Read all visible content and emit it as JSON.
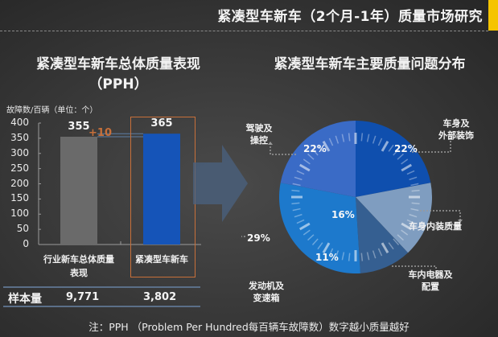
{
  "header": {
    "title": "紧凑型车新车（2个月-1年）质量市场研究",
    "accent_color": "#f5c400"
  },
  "left_panel": {
    "title_line1": "紧凑型车新车总体质量表现",
    "title_line2": "（PPH）",
    "unit_label": "故障数/百辆（单位：个）",
    "diff_label": "+10",
    "highlight_color": "#c8703a",
    "sample_table": {
      "row_label": "样本量",
      "values": [
        "9,771",
        "3,802"
      ]
    }
  },
  "right_panel": {
    "title": "紧凑型车新车主要质量问题分布"
  },
  "chart_data": [
    {
      "type": "bar",
      "title": "紧凑型车新车总体质量表现（PPH）",
      "ylabel": "故障数/百辆（单位：个）",
      "xlabel": "",
      "categories": [
        "行业新车总体质量表现",
        "紧凑型车新车"
      ],
      "category_lines": [
        [
          "行业新车总体质量",
          "表现"
        ],
        [
          "紧凑型车新车"
        ]
      ],
      "values": [
        355,
        365
      ],
      "value_labels": [
        "355",
        "365"
      ],
      "colors": [
        "#6a6a6a",
        "#1554b8"
      ],
      "ylim": [
        0,
        400
      ],
      "yticks": [
        0,
        50,
        100,
        150,
        200,
        250,
        300,
        350,
        400
      ],
      "annotation": "+10",
      "grid": false,
      "legend": null
    },
    {
      "type": "pie",
      "title": "紧凑型车新车主要质量问题分布",
      "slices": [
        {
          "label": "车身及外部装饰",
          "label_lines": [
            "车身及",
            "外部装饰"
          ],
          "value": 22,
          "value_label": "22%",
          "color": "#0f4fae"
        },
        {
          "label": "车身内装质量",
          "label_lines": [
            "车身内装质量"
          ],
          "value": 16,
          "value_label": "16%",
          "color": "#7f9dc0"
        },
        {
          "label": "车内电器及配置",
          "label_lines": [
            "车内电器及",
            "配置"
          ],
          "value": 11,
          "value_label": "11%",
          "color": "#355f91"
        },
        {
          "label": "发动机及变速箱",
          "label_lines": [
            "发动机及",
            "变速箱"
          ],
          "value": 29,
          "value_label": "29%",
          "color": "#1d79cc"
        },
        {
          "label": "驾驶及操控",
          "label_lines": [
            "驾驶及",
            "操控"
          ],
          "value": 22,
          "value_label": "22%",
          "color": "#3a6bc6"
        }
      ],
      "start_angle": "12 o'clock, clockwise",
      "legend": null
    }
  ],
  "footnote": "注：PPH （Problem Per Hundred每百辆车故障数）数字越小质量越好"
}
